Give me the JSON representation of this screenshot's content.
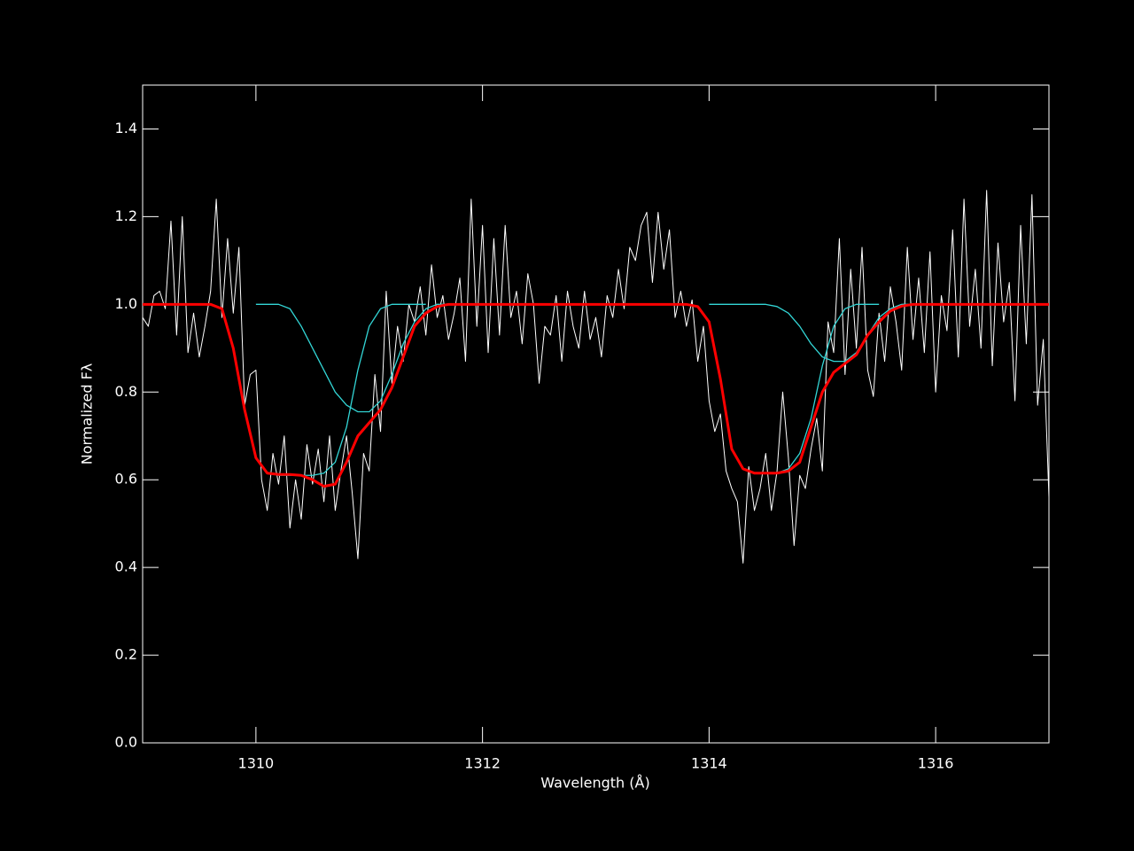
{
  "chart_data": {
    "type": "line",
    "xlabel": "Wavelength (Å)",
    "ylabel": "Normalized Fλ",
    "xlim": [
      1309,
      1317
    ],
    "ylim": [
      0,
      1.5
    ],
    "xticks": [
      1310,
      1312,
      1314,
      1316
    ],
    "yticks": [
      {
        "value": 0,
        "label": "0.0"
      },
      0.2,
      0.4,
      0.6,
      0.8,
      {
        "value": 1,
        "label": "1.0"
      },
      1.2,
      1.4
    ],
    "series": [
      {
        "color": "#ffffff",
        "x": [
          1309,
          1309.05,
          1309.1,
          1309.15,
          1309.2,
          1309.25,
          1309.3,
          1309.35,
          1309.4,
          1309.45,
          1309.5,
          1309.55,
          1309.6,
          1309.65,
          1309.7,
          1309.75,
          1309.8,
          1309.85,
          1309.9,
          1309.95,
          1310,
          1310.05,
          1310.1,
          1310.15,
          1310.2,
          1310.25,
          1310.3,
          1310.35,
          1310.4,
          1310.45,
          1310.5,
          1310.55,
          1310.6,
          1310.65,
          1310.7,
          1310.75,
          1310.8,
          1310.85,
          1310.9,
          1310.95,
          1311,
          1311.05,
          1311.1,
          1311.15,
          1311.2,
          1311.25,
          1311.3,
          1311.35,
          1311.4,
          1311.45,
          1311.5,
          1311.55,
          1311.6,
          1311.65,
          1311.7,
          1311.75,
          1311.8,
          1311.85,
          1311.9,
          1311.95,
          1312,
          1312.05,
          1312.1,
          1312.15,
          1312.2,
          1312.25,
          1312.3,
          1312.35,
          1312.4,
          1312.45,
          1312.5,
          1312.55,
          1312.6,
          1312.65,
          1312.7,
          1312.75,
          1312.8,
          1312.85,
          1312.9,
          1312.95,
          1313,
          1313.05,
          1313.1,
          1313.15,
          1313.2,
          1313.25,
          1313.3,
          1313.35,
          1313.4,
          1313.45,
          1313.5,
          1313.55,
          1313.6,
          1313.65,
          1313.7,
          1313.75,
          1313.8,
          1313.85,
          1313.9,
          1313.95,
          1314,
          1314.05,
          1314.1,
          1314.15,
          1314.2,
          1314.25,
          1314.3,
          1314.35,
          1314.4,
          1314.45,
          1314.5,
          1314.55,
          1314.6,
          1314.65,
          1314.7,
          1314.75,
          1314.8,
          1314.85,
          1314.9,
          1314.95,
          1315,
          1315.05,
          1315.1,
          1315.15,
          1315.2,
          1315.25,
          1315.3,
          1315.35,
          1315.4,
          1315.45,
          1315.5,
          1315.55,
          1315.6,
          1315.65,
          1315.7,
          1315.75,
          1315.8,
          1315.85,
          1315.9,
          1315.95,
          1316,
          1316.05,
          1316.1,
          1316.15,
          1316.2,
          1316.25,
          1316.3,
          1316.35,
          1316.4,
          1316.45,
          1316.5,
          1316.55,
          1316.6,
          1316.65,
          1316.7,
          1316.75,
          1316.8,
          1316.85,
          1316.9,
          1316.95,
          1317
        ],
        "values": [
          0.97,
          0.95,
          1.02,
          1.03,
          0.99,
          1.19,
          0.93,
          1.2,
          0.89,
          0.98,
          0.88,
          0.95,
          1.03,
          1.24,
          0.97,
          1.15,
          0.98,
          1.13,
          0.77,
          0.84,
          0.85,
          0.6,
          0.53,
          0.66,
          0.59,
          0.7,
          0.49,
          0.6,
          0.51,
          0.68,
          0.59,
          0.67,
          0.55,
          0.7,
          0.53,
          0.62,
          0.7,
          0.57,
          0.42,
          0.66,
          0.62,
          0.84,
          0.71,
          1.03,
          0.82,
          0.95,
          0.87,
          1,
          0.96,
          1.04,
          0.93,
          1.09,
          0.97,
          1.02,
          0.92,
          0.98,
          1.06,
          0.87,
          1.24,
          0.95,
          1.18,
          0.89,
          1.15,
          0.93,
          1.18,
          0.97,
          1.03,
          0.91,
          1.07,
          1,
          0.82,
          0.95,
          0.93,
          1.02,
          0.87,
          1.03,
          0.95,
          0.9,
          1.03,
          0.92,
          0.97,
          0.88,
          1.02,
          0.97,
          1.08,
          0.99,
          1.13,
          1.1,
          1.18,
          1.21,
          1.05,
          1.21,
          1.08,
          1.17,
          0.97,
          1.03,
          0.95,
          1.01,
          0.87,
          0.95,
          0.78,
          0.71,
          0.75,
          0.62,
          0.58,
          0.55,
          0.41,
          0.63,
          0.53,
          0.58,
          0.66,
          0.53,
          0.62,
          0.8,
          0.65,
          0.45,
          0.61,
          0.58,
          0.67,
          0.74,
          0.62,
          0.96,
          0.89,
          1.15,
          0.84,
          1.08,
          0.9,
          1.13,
          0.85,
          0.79,
          0.98,
          0.87,
          1.04,
          0.96,
          0.85,
          1.13,
          0.92,
          1.06,
          0.89,
          1.12,
          0.8,
          1.02,
          0.94,
          1.17,
          0.88,
          1.24,
          0.95,
          1.08,
          0.9,
          1.26,
          0.86,
          1.14,
          0.96,
          1.05,
          0.78,
          1.18,
          0.91,
          1.25,
          0.77,
          0.92,
          0.56
        ]
      },
      {
        "color": "#33d6d6",
        "x": [
          1309.5,
          1309.6,
          1309.7,
          1309.8,
          1309.9,
          1310,
          1310.1,
          1310.2,
          1310.3,
          1310.4,
          1310.5,
          1310.6,
          1310.7,
          1310.8,
          1310.9,
          1311,
          1311.1,
          1311.2,
          1311.3,
          1311.4,
          1311.5
        ],
        "values": [
          1,
          1,
          0.99,
          0.9,
          0.76,
          0.65,
          0.615,
          0.61,
          0.61,
          0.61,
          0.61,
          0.615,
          0.64,
          0.72,
          0.85,
          0.95,
          0.99,
          1,
          1,
          1,
          1
        ]
      },
      {
        "color": "#33d6d6",
        "x": [
          1310,
          1310.1,
          1310.2,
          1310.3,
          1310.4,
          1310.5,
          1310.6,
          1310.7,
          1310.8,
          1310.9,
          1311,
          1311.1,
          1311.2,
          1311.3,
          1311.4,
          1311.5,
          1311.6,
          1311.7,
          1311.8,
          1311.9,
          1312
        ],
        "values": [
          1,
          1,
          1,
          0.99,
          0.95,
          0.9,
          0.85,
          0.8,
          0.77,
          0.755,
          0.755,
          0.78,
          0.84,
          0.91,
          0.96,
          0.99,
          1,
          1,
          1,
          1,
          1
        ]
      },
      {
        "color": "#33d6d6",
        "x": [
          1313.5,
          1313.6,
          1313.7,
          1313.8,
          1313.9,
          1314,
          1314.1,
          1314.2,
          1314.3,
          1314.4,
          1314.5,
          1314.6,
          1314.7,
          1314.8,
          1314.9,
          1315,
          1315.1,
          1315.2,
          1315.3,
          1315.4,
          1315.5
        ],
        "values": [
          1,
          1,
          1,
          1,
          0.995,
          0.96,
          0.83,
          0.67,
          0.625,
          0.615,
          0.615,
          0.615,
          0.625,
          0.66,
          0.74,
          0.86,
          0.95,
          0.99,
          1,
          1,
          1
        ]
      },
      {
        "color": "#33d6d6",
        "x": [
          1314,
          1314.1,
          1314.2,
          1314.3,
          1314.4,
          1314.5,
          1314.6,
          1314.7,
          1314.8,
          1314.9,
          1315,
          1315.1,
          1315.2,
          1315.3,
          1315.4,
          1315.5,
          1315.6,
          1315.7,
          1315.8,
          1315.9,
          1316
        ],
        "values": [
          1,
          1,
          1,
          1,
          1,
          1,
          0.995,
          0.98,
          0.95,
          0.91,
          0.88,
          0.87,
          0.87,
          0.89,
          0.93,
          0.97,
          0.99,
          1,
          1,
          1,
          1
        ]
      },
      {
        "color": "#ff0000",
        "x": [
          1309,
          1309.1,
          1309.2,
          1309.3,
          1309.4,
          1309.5,
          1309.6,
          1309.7,
          1309.8,
          1309.9,
          1310,
          1310.1,
          1310.2,
          1310.3,
          1310.4,
          1310.5,
          1310.6,
          1310.7,
          1310.8,
          1310.9,
          1311,
          1311.1,
          1311.2,
          1311.3,
          1311.4,
          1311.5,
          1311.6,
          1311.7,
          1311.8,
          1311.9,
          1312,
          1312.1,
          1312.2,
          1312.3,
          1312.4,
          1312.5,
          1312.6,
          1312.7,
          1312.8,
          1312.9,
          1313,
          1313.1,
          1313.2,
          1313.3,
          1313.4,
          1313.5,
          1313.6,
          1313.7,
          1313.8,
          1313.9,
          1314,
          1314.1,
          1314.2,
          1314.3,
          1314.4,
          1314.5,
          1314.6,
          1314.7,
          1314.8,
          1314.9,
          1315,
          1315.1,
          1315.2,
          1315.3,
          1315.4,
          1315.5,
          1315.6,
          1315.7,
          1315.8,
          1315.9,
          1316,
          1316.1,
          1316.2,
          1316.3,
          1316.4,
          1316.5,
          1316.6,
          1316.7,
          1316.8,
          1316.9,
          1317
        ],
        "values": [
          1,
          1,
          1,
          1,
          1,
          1,
          1,
          0.99,
          0.9,
          0.76,
          0.65,
          0.615,
          0.612,
          0.612,
          0.61,
          0.6,
          0.585,
          0.59,
          0.64,
          0.7,
          0.73,
          0.76,
          0.81,
          0.88,
          0.95,
          0.98,
          0.995,
          1,
          1,
          1,
          1,
          1,
          1,
          1,
          1,
          1,
          1,
          1,
          1,
          1,
          1,
          1,
          1,
          1,
          1,
          1,
          1,
          1,
          1,
          0.995,
          0.96,
          0.83,
          0.67,
          0.625,
          0.615,
          0.615,
          0.615,
          0.62,
          0.64,
          0.72,
          0.8,
          0.845,
          0.865,
          0.885,
          0.93,
          0.96,
          0.985,
          0.996,
          1,
          1,
          1,
          1,
          1,
          1,
          1,
          1,
          1,
          1,
          1,
          1,
          1
        ]
      }
    ]
  }
}
